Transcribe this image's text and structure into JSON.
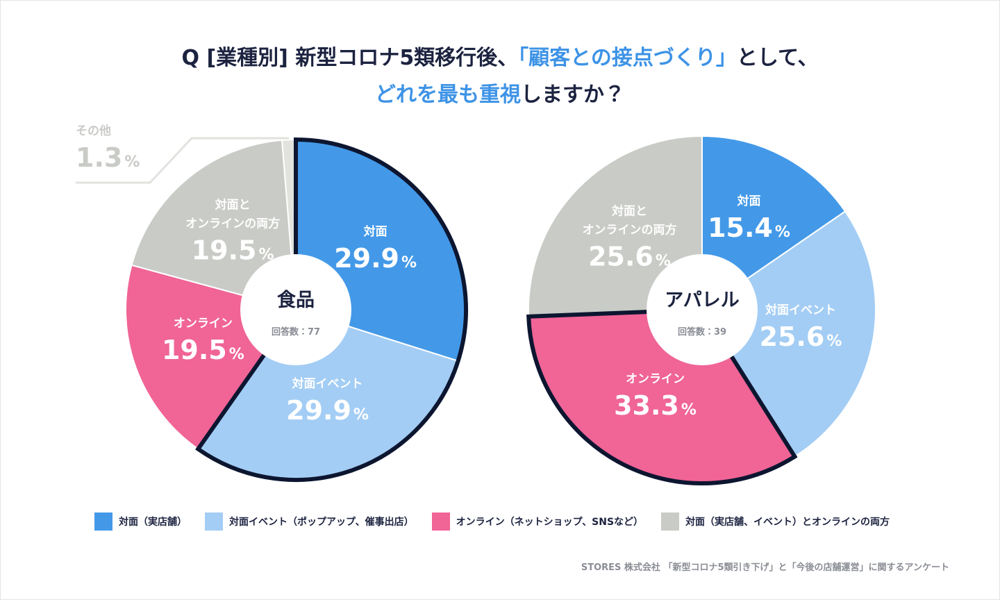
{
  "title": {
    "color": "#1c2340",
    "highlight_color": "#3d93e6",
    "lines": [
      [
        {
          "text": "Q [業種別] 新型コロナ5類移行後、",
          "highlight": false
        },
        {
          "text": "「顧客との接点づくり」",
          "highlight": true
        },
        {
          "text": "として、",
          "highlight": false
        }
      ],
      [
        {
          "text": "どれを最も重視",
          "highlight": true
        },
        {
          "text": "しますか？",
          "highlight": false
        }
      ]
    ]
  },
  "chart_data": [
    {
      "type": "pie",
      "center_title": "食品",
      "center_subtitle": "回答数：77",
      "unit": "%",
      "categories": [
        "対面",
        "対面イベント",
        "オンライン",
        "対面と\nオンラインの両方",
        "その他"
      ],
      "values": [
        29.9,
        29.9,
        19.5,
        19.5,
        1.3
      ],
      "colors": [
        "#4399e8",
        "#a3cdf4",
        "#f06496",
        "#c9cbc6",
        "#e2e2de"
      ],
      "highlighted": [
        true,
        true,
        false,
        false,
        false
      ]
    },
    {
      "type": "pie",
      "center_title": "アパレル",
      "center_subtitle": "回答数：39",
      "unit": "%",
      "categories": [
        "対面",
        "対面イベント",
        "オンライン",
        "対面と\nオンラインの両方"
      ],
      "values": [
        15.4,
        25.6,
        33.3,
        25.6
      ],
      "colors": [
        "#4399e8",
        "#a3cdf4",
        "#f06496",
        "#c9cbc6"
      ],
      "highlighted": [
        false,
        false,
        true,
        false
      ]
    }
  ],
  "legend": [
    {
      "name": "対面（実店舗）",
      "color": "#4399e8"
    },
    {
      "name": "対面イベント（ポップアップ、催事出店）",
      "color": "#a3cdf4"
    },
    {
      "name": "オンライン（ネットショップ、SNSなど）",
      "color": "#f06496"
    },
    {
      "name": "対面（実店舗、イベント）とオンラインの両方",
      "color": "#c9cbc6"
    }
  ],
  "source": "STORES 株式会社 「新型コロナ5類引き下げ」と「今後の店舗運営」に関するアンケート"
}
